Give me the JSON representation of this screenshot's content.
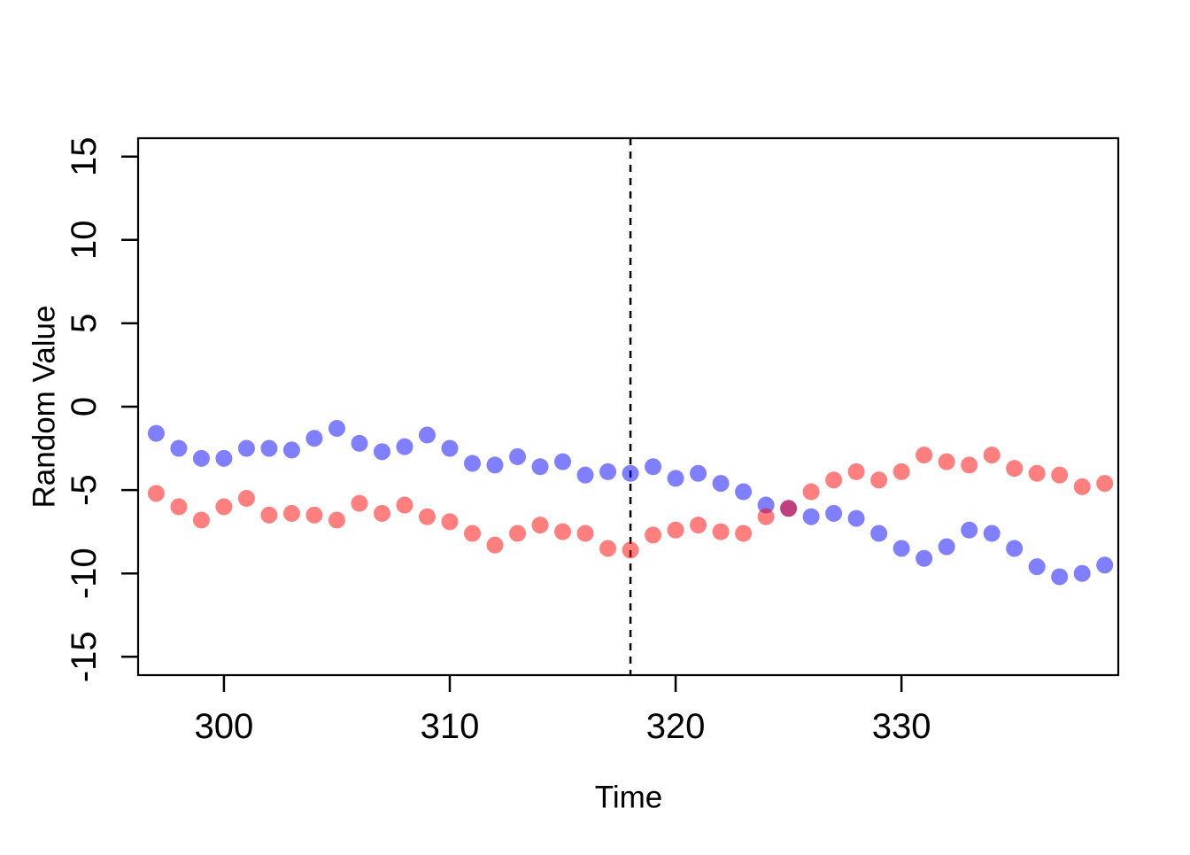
{
  "figure": {
    "background_color": "#ffffff",
    "title": ""
  },
  "chart_data": {
    "type": "scatter",
    "title": "",
    "xlabel": "Time",
    "ylabel": "Random Value",
    "xlim": [
      296.2,
      339.6
    ],
    "ylim": [
      -16.1,
      16.1
    ],
    "x_ticks": [
      300,
      310,
      320,
      330
    ],
    "y_ticks": [
      -15,
      -10,
      -5,
      0,
      5,
      10,
      15
    ],
    "grid": false,
    "legend_position": "none",
    "vline": {
      "x": 318,
      "line_style": "dashed",
      "color": "#000000"
    },
    "x": [
      297,
      298,
      299,
      300,
      301,
      302,
      303,
      304,
      305,
      306,
      307,
      308,
      309,
      310,
      311,
      312,
      313,
      314,
      315,
      316,
      317,
      318,
      319,
      320,
      321,
      322,
      323,
      324,
      325,
      326,
      327,
      328,
      329,
      330,
      331,
      332,
      333,
      334,
      335,
      336,
      337,
      338,
      339
    ],
    "series": [
      {
        "name": "blue-series",
        "color": "rgba(0,0,255,0.5)",
        "values": [
          -1.6,
          -2.5,
          -3.1,
          -3.1,
          -2.5,
          -2.5,
          -2.6,
          -1.9,
          -1.3,
          -2.2,
          -2.7,
          -2.4,
          -1.7,
          -2.5,
          -3.4,
          -3.5,
          -3.0,
          -3.6,
          -3.3,
          -4.1,
          -3.9,
          -4.0,
          -3.6,
          -4.3,
          -4.0,
          -4.6,
          -5.1,
          -5.9,
          -6.1,
          -6.6,
          -6.4,
          -6.7,
          -7.6,
          -8.5,
          -9.1,
          -8.4,
          -7.4,
          -7.6,
          -8.5,
          -9.6,
          -10.2,
          -10.0,
          -9.5
        ]
      },
      {
        "name": "red-series",
        "color": "rgba(255,0,0,0.5)",
        "values": [
          -5.2,
          -6.0,
          -6.8,
          -6.0,
          -5.5,
          -6.5,
          -6.4,
          -6.5,
          -6.8,
          -5.8,
          -6.4,
          -5.9,
          -6.6,
          -6.9,
          -7.6,
          -8.3,
          -7.6,
          -7.1,
          -7.5,
          -7.6,
          -8.5,
          -8.6,
          -7.7,
          -7.4,
          -7.1,
          -7.5,
          -7.6,
          -6.6,
          -6.1,
          -5.1,
          -4.4,
          -3.9,
          -4.4,
          -3.9,
          -2.9,
          -3.3,
          -3.5,
          -2.9,
          -3.7,
          -4.0,
          -4.1,
          -4.8,
          -4.6
        ]
      }
    ],
    "overlap_point": {
      "x": 325,
      "observed_color": "#BF4080"
    },
    "colors": {
      "axis": "#000000",
      "blue_on_white": "#8080FF",
      "red_on_white": "#FF8080"
    }
  }
}
